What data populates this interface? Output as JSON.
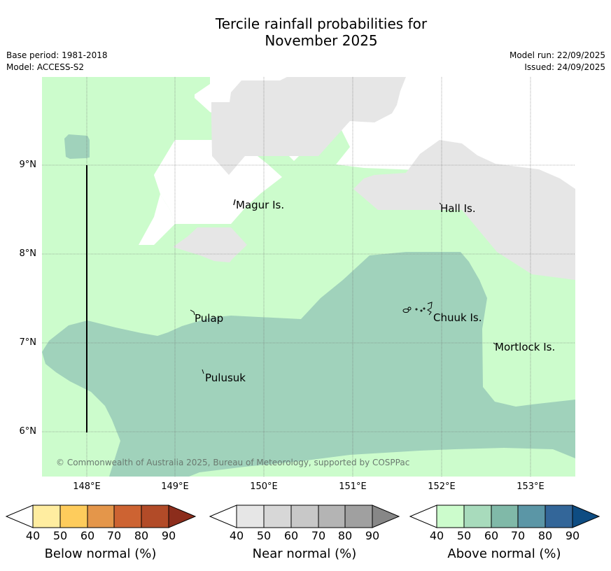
{
  "title": {
    "line1": "Tercile rainfall probabilities for",
    "line2": "November 2025"
  },
  "meta": {
    "base_period": "Base period: 1981-2018",
    "model": "Model: ACCESS-S2",
    "model_run": "Model run: 22/09/2025",
    "issued": "Issued: 24/09/2025"
  },
  "map": {
    "lat_labels": [
      "9°N",
      "8°N",
      "7°N",
      "6°N"
    ],
    "lon_labels": [
      "148°E",
      "149°E",
      "150°E",
      "151°E",
      "152°E",
      "153°E"
    ],
    "places": {
      "magur": "Magur Is.",
      "hall": "Hall Is.",
      "pulap": "Pulap",
      "chuuk": "Chuuk Is.",
      "mortlock": "Mortlock Is.",
      "pulusuk": "Pulusuk"
    },
    "copyright": "© Commonwealth of Australia 2025, Bureau of Meteorology, supported by COSPPac",
    "colors": {
      "above_40_50": "#ccfccc",
      "above_50_60": "#a0d2bb",
      "near_40_50": "#e6e6e6",
      "background": "#ffffff"
    }
  },
  "colorbars": [
    {
      "label": "Below normal (%)",
      "ticks": [
        "40",
        "50",
        "60",
        "70",
        "80",
        "90"
      ],
      "colors": [
        "#ffeda0",
        "#fecc5c",
        "#e4964a",
        "#cd6332",
        "#b24b28",
        "#8c2d1c"
      ]
    },
    {
      "label": "Near normal (%)",
      "ticks": [
        "40",
        "50",
        "60",
        "70",
        "80",
        "90"
      ],
      "colors": [
        "#e6e6e6",
        "#d7d7d7",
        "#c8c8c8",
        "#b4b4b4",
        "#a0a0a0",
        "#878787"
      ]
    },
    {
      "label": "Above normal (%)",
      "ticks": [
        "40",
        "50",
        "60",
        "70",
        "80",
        "90"
      ],
      "colors": [
        "#ccfccc",
        "#a8dbbc",
        "#80b9a8",
        "#5b96a6",
        "#336699",
        "#0e4c82"
      ]
    }
  ]
}
